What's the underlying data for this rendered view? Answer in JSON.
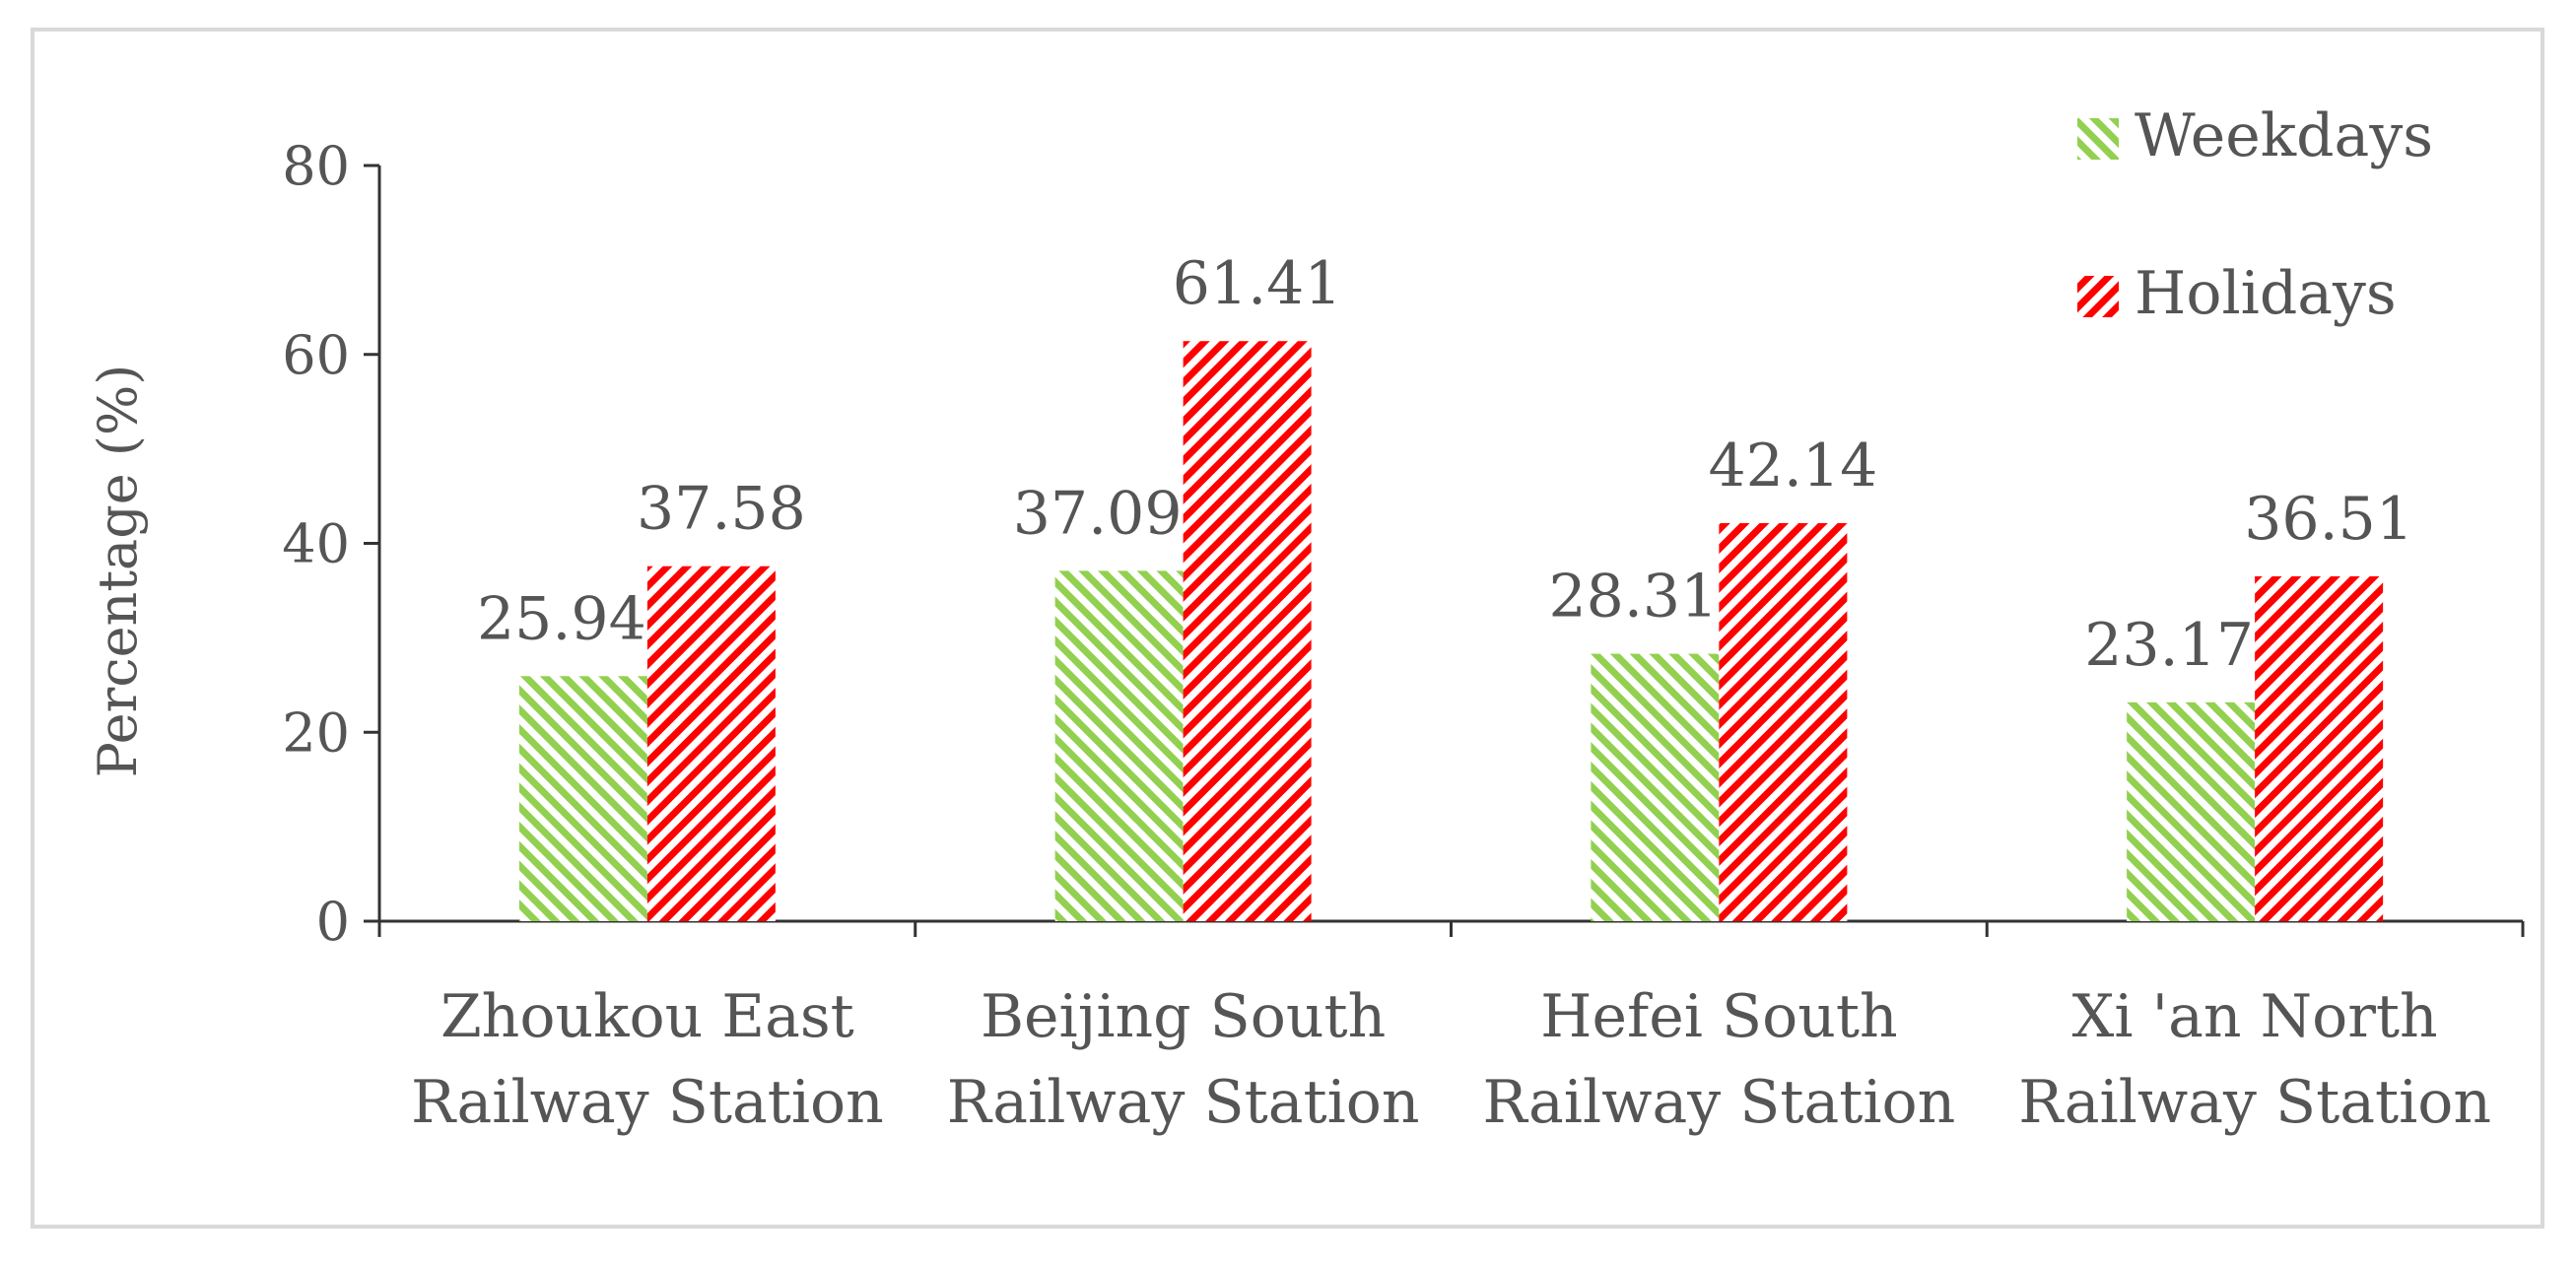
{
  "chart_data": {
    "type": "bar",
    "title": "",
    "xlabel": "",
    "ylabel": "Percentage (%)",
    "ylim": [
      0,
      80
    ],
    "yticks": [
      0,
      20,
      40,
      60,
      80
    ],
    "categories": [
      [
        "Zhoukou East",
        "Railway Station"
      ],
      [
        "Beijing South",
        "Railway Station"
      ],
      [
        "Hefei South",
        "Railway Station"
      ],
      [
        "Xi 'an North",
        "Railway Station"
      ]
    ],
    "series": [
      {
        "name": "Weekdays",
        "color": "#92d050",
        "labels": [
          "25.94",
          "37.09",
          "28.31",
          "23.17"
        ],
        "values": [
          25.94,
          37.09,
          28.31,
          23.17
        ]
      },
      {
        "name": "Holidays",
        "color": "#ff0000",
        "labels": [
          "37.58",
          "61.41",
          "42.14",
          "36.51"
        ],
        "values": [
          37.58,
          61.41,
          42.14,
          36.51
        ]
      }
    ],
    "legend": "top-right",
    "grid": false
  }
}
